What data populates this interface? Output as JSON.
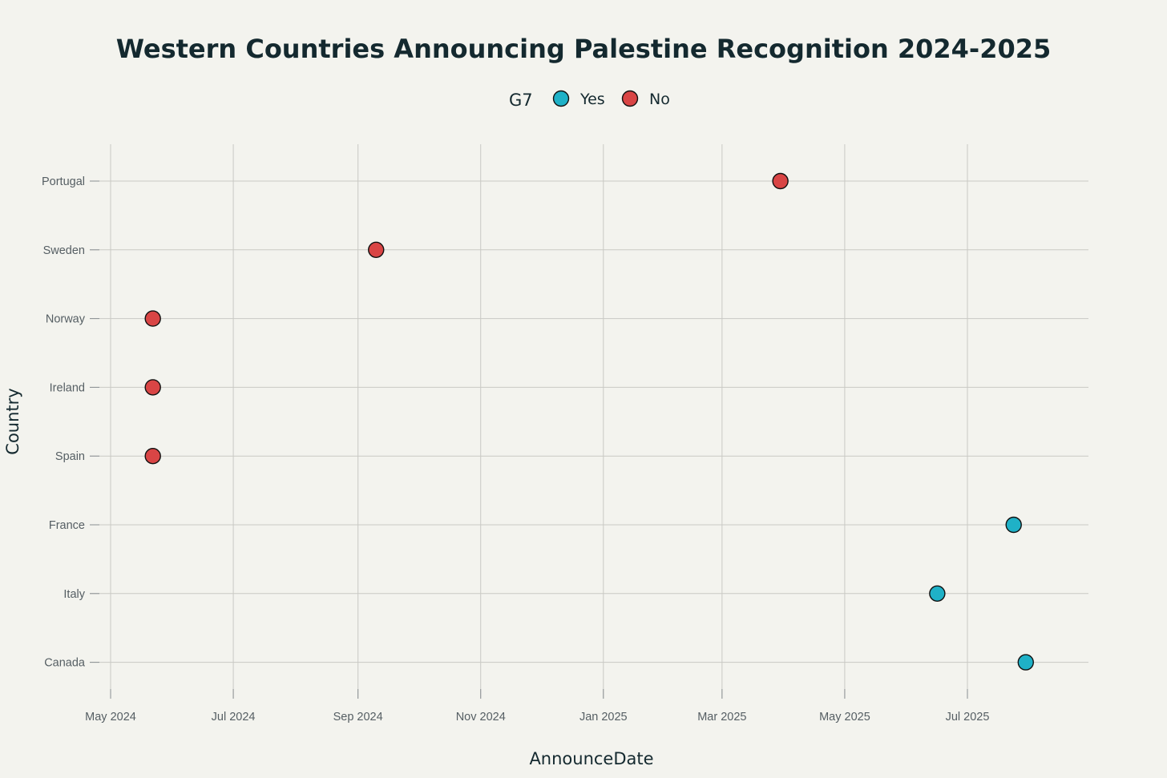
{
  "chart_data": {
    "type": "scatter",
    "title": "Western Countries Announcing Palestine Recognition 2024-2025",
    "xlabel": "AnnounceDate",
    "ylabel": "Country",
    "x_scale": "date",
    "xlim": [
      "2024-05-01",
      "2025-08-31"
    ],
    "x_ticks": [
      {
        "value": "2024-05-01",
        "label": "May 2024"
      },
      {
        "value": "2024-07-01",
        "label": "Jul 2024"
      },
      {
        "value": "2024-09-01",
        "label": "Sep 2024"
      },
      {
        "value": "2024-11-01",
        "label": "Nov 2024"
      },
      {
        "value": "2025-01-01",
        "label": "Jan 2025"
      },
      {
        "value": "2025-03-01",
        "label": "Mar 2025"
      },
      {
        "value": "2025-05-01",
        "label": "May 2025"
      },
      {
        "value": "2025-07-01",
        "label": "Jul 2025"
      }
    ],
    "categories": [
      "Portugal",
      "Sweden",
      "Norway",
      "Ireland",
      "Spain",
      "France",
      "Italy",
      "Canada"
    ],
    "grid": true,
    "legend": {
      "title": "G7",
      "placement": "top-center",
      "entries": [
        {
          "label": "Yes",
          "color": "#1fb1c7"
        },
        {
          "label": "No",
          "color": "#d94545"
        }
      ]
    },
    "points": [
      {
        "country": "Portugal",
        "date": "2025-03-30",
        "g7": "No"
      },
      {
        "country": "Sweden",
        "date": "2024-09-10",
        "g7": "No"
      },
      {
        "country": "Norway",
        "date": "2024-05-22",
        "g7": "No"
      },
      {
        "country": "Ireland",
        "date": "2024-05-22",
        "g7": "No"
      },
      {
        "country": "Spain",
        "date": "2024-05-22",
        "g7": "No"
      },
      {
        "country": "France",
        "date": "2025-07-24",
        "g7": "Yes"
      },
      {
        "country": "Italy",
        "date": "2025-06-16",
        "g7": "Yes"
      },
      {
        "country": "Canada",
        "date": "2025-07-30",
        "g7": "Yes"
      }
    ]
  }
}
